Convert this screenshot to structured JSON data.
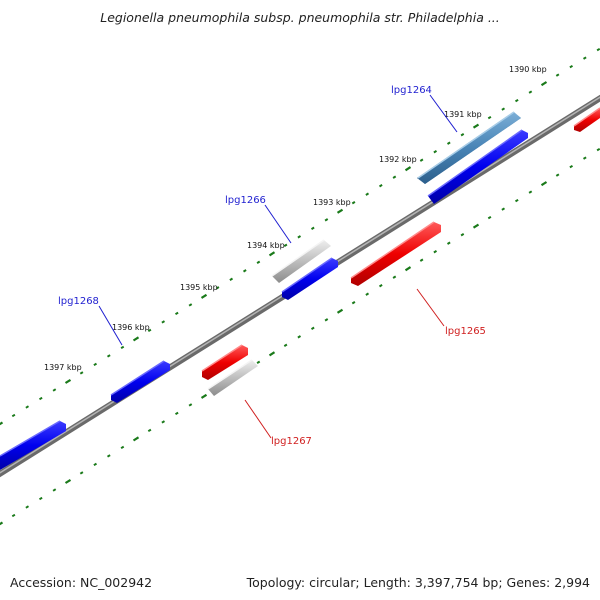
{
  "title": "Legionella pneumophila subsp. pneumophila str. Philadelphia ...",
  "footer": {
    "accession": "Accession: NC_002942",
    "summary": "Topology: circular; Length: 3,397,754 bp; Genes: 2,994"
  },
  "ticks": [
    {
      "label": "1390 kbp"
    },
    {
      "label": "1391 kbp"
    },
    {
      "label": "1392 kbp"
    },
    {
      "label": "1393 kbp"
    },
    {
      "label": "1394 kbp"
    },
    {
      "label": "1395 kbp"
    },
    {
      "label": "1396 kbp"
    },
    {
      "label": "1397 kbp"
    }
  ],
  "gene_labels": [
    {
      "name": "lpg1264",
      "color": "#1f1fd0"
    },
    {
      "name": "lpg1265",
      "color": "#d01f1f"
    },
    {
      "name": "lpg1266",
      "color": "#1f1fd0"
    },
    {
      "name": "lpg1267",
      "color": "#d01f1f"
    },
    {
      "name": "lpg1268",
      "color": "#1f1fd0"
    }
  ],
  "colors": {
    "forward_gene": "#0000ee",
    "reverse_gene": "#ee0000",
    "highlight_gene": "#4a86b8",
    "pseudo_gene": "#b8b8b8",
    "backbone": "#808080",
    "tick_dots": "#1a7a1a"
  }
}
